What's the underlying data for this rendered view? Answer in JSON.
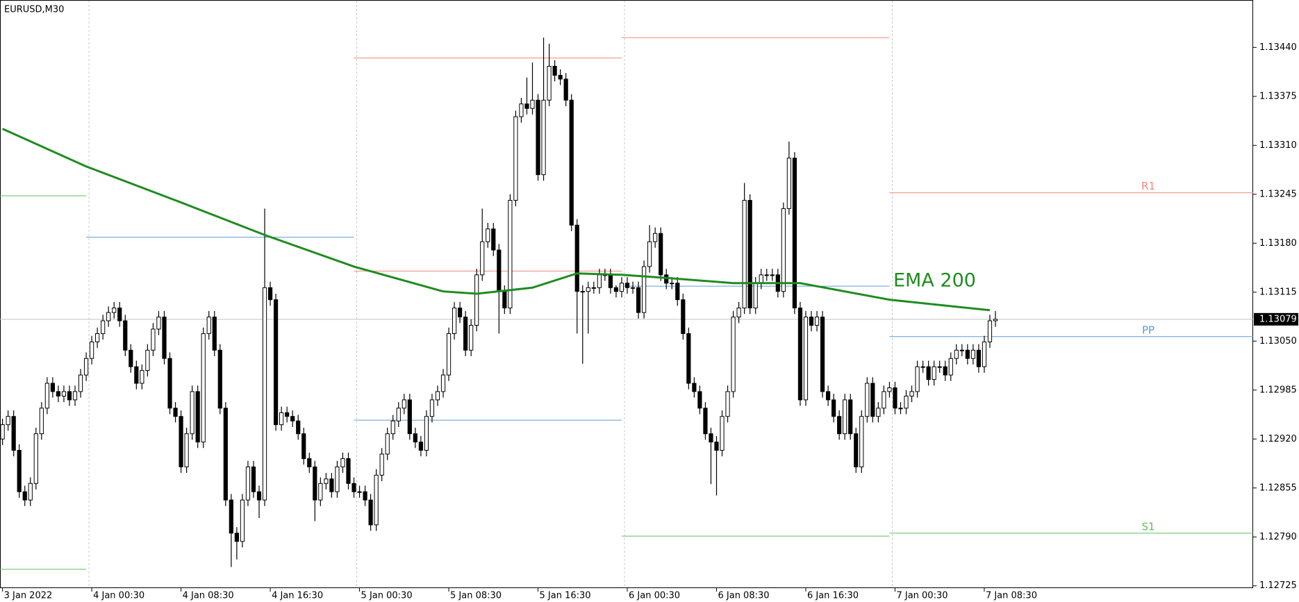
{
  "chart_data": {
    "type": "candlestick",
    "title": "EURUSD,M30",
    "xlim": [
      -0.45,
      224.2
    ],
    "ylim": [
      1.12722,
      1.13503
    ],
    "xticks": [
      {
        "value": 0,
        "label": "3 Jan 2022"
      },
      {
        "value": 16,
        "label": "4 Jan 00:30"
      },
      {
        "value": 32,
        "label": "4 Jan 08:30"
      },
      {
        "value": 48,
        "label": "4 Jan 16:30"
      },
      {
        "value": 64,
        "label": "5 Jan 00:30"
      },
      {
        "value": 80,
        "label": "5 Jan 08:30"
      },
      {
        "value": 96,
        "label": "5 Jan 16:30"
      },
      {
        "value": 112,
        "label": "6 Jan 00:30"
      },
      {
        "value": 128,
        "label": "6 Jan 08:30"
      },
      {
        "value": 144,
        "label": "6 Jan 16:30"
      },
      {
        "value": 160,
        "label": "7 Jan 00:30"
      },
      {
        "value": 176,
        "label": "7 Jan 08:30"
      }
    ],
    "yticks": [
      1.12725,
      {
        "value": 1.1279,
        "label": "1.12790"
      },
      1.12855,
      {
        "value": 1.1292,
        "label": "1.12920"
      },
      1.12985,
      {
        "value": 1.1305,
        "label": "1.13050"
      },
      1.13115,
      {
        "value": 1.1318,
        "label": "1.13180"
      },
      1.13245,
      {
        "value": 1.1331,
        "label": "1.13310"
      },
      1.13375,
      {
        "value": 1.1344,
        "label": "1.13440"
      }
    ],
    "day_separators": [
      15,
      63,
      111,
      159
    ],
    "up_color": "#ffffff",
    "down_color": "#000000",
    "open": [
      1.1292,
      1.12939,
      1.1295,
      1.12905,
      1.1285,
      1.12839,
      1.12861,
      1.12927,
      1.12961,
      1.12994,
      1.12983,
      1.12977,
      1.12983,
      1.12972,
      1.12983,
      1.13005,
      1.13027,
      1.13049,
      1.1306,
      1.13077,
      1.13088,
      1.13094,
      1.13077,
      1.13038,
      1.13016,
      1.12994,
      1.13011,
      1.13038,
      1.13066,
      1.13082,
      1.13027,
      1.12961,
      1.1295,
      1.12883,
      1.12927,
      1.12983,
      1.12916,
      1.1306,
      1.13082,
      1.13038,
      1.12961,
      1.12839,
      1.12795,
      1.12784,
      1.12839,
      1.12883,
      1.1285,
      1.12839,
      1.13121,
      1.13105,
      1.12939,
      1.12955,
      1.1295,
      1.12944,
      1.12927,
      1.12894,
      1.12883,
      1.12839,
      1.12861,
      1.12867,
      1.1285,
      1.12883,
      1.12894,
      1.12861,
      1.1285,
      1.1285,
      1.12839,
      1.12806,
      1.12872,
      1.129,
      1.12927,
      1.12944,
      1.12961,
      1.12972,
      1.12927,
      1.12916,
      1.12905,
      1.1295,
      1.12972,
      1.12983,
      1.13005,
      1.1306,
      1.13094,
      1.13082,
      1.13038,
      1.13071,
      1.13138,
      1.13182,
      1.13199,
      1.13171,
      1.13116,
      1.13094,
      1.13237,
      1.13348,
      1.13365,
      1.13359,
      1.1337,
      1.13271,
      1.1337,
      1.13415,
      1.13403,
      1.13398,
      1.1337,
      1.13204,
      1.13116,
      1.13116,
      1.13121,
      1.13121,
      1.13138,
      1.13138,
      1.13121,
      1.13116,
      1.13127,
      1.13121,
      1.13121,
      1.13088,
      1.13149,
      1.13182,
      1.13193,
      1.13138,
      1.13127,
      1.13127,
      1.13105,
      1.1306,
      1.12994,
      1.12983,
      1.12961,
      1.12927,
      1.12916,
      1.12905,
      1.1295,
      1.12983,
      1.13082,
      1.13094,
      1.13237,
      1.13094,
      1.13127,
      1.13138,
      1.13138,
      1.13138,
      1.13116,
      1.13226,
      1.13293,
      1.13094,
      1.12972,
      1.13082,
      1.13071,
      1.13082,
      1.12983,
      1.12972,
      1.1295,
      1.12927,
      1.12972,
      1.12927,
      1.12883,
      1.1295,
      1.12994,
      1.1295,
      1.12961,
      1.12983,
      1.12988,
      1.12961,
      1.12961,
      1.12977,
      1.12983,
      1.13016,
      1.13016,
      1.12999,
      1.13016,
      1.13016,
      1.13005,
      1.13027,
      1.13038,
      1.13038,
      1.13027,
      1.13038,
      1.13016,
      1.13049,
      1.13077
    ],
    "high": [
      1.12947,
      1.12958,
      1.12958,
      1.12913,
      1.12858,
      1.12869,
      1.12935,
      1.12969,
      1.13002,
      1.13002,
      1.12991,
      1.12991,
      1.12991,
      1.12991,
      1.13013,
      1.13035,
      1.13057,
      1.13068,
      1.13085,
      1.13096,
      1.13102,
      1.13102,
      1.13085,
      1.13046,
      1.13024,
      1.13019,
      1.13046,
      1.13074,
      1.1309,
      1.1309,
      1.13035,
      1.12969,
      1.12958,
      1.12935,
      1.12991,
      1.12991,
      1.13068,
      1.1309,
      1.1309,
      1.13046,
      1.12969,
      1.12847,
      1.12803,
      1.12847,
      1.12891,
      1.12891,
      1.12858,
      1.13226,
      1.13129,
      1.13113,
      1.12963,
      1.12963,
      1.12958,
      1.12952,
      1.12935,
      1.12902,
      1.12891,
      1.12869,
      1.12875,
      1.12875,
      1.12891,
      1.12902,
      1.12902,
      1.12869,
      1.12858,
      1.12858,
      1.12847,
      1.1288,
      1.12908,
      1.12935,
      1.12952,
      1.12969,
      1.1298,
      1.1298,
      1.12935,
      1.12924,
      1.12958,
      1.1298,
      1.12991,
      1.13013,
      1.13068,
      1.13102,
      1.13102,
      1.1309,
      1.13079,
      1.13146,
      1.13226,
      1.13207,
      1.13207,
      1.13179,
      1.13124,
      1.13245,
      1.13356,
      1.13373,
      1.134,
      1.1342,
      1.13378,
      1.13453,
      1.13445,
      1.13423,
      1.13411,
      1.13406,
      1.13378,
      1.13212,
      1.13124,
      1.13129,
      1.13129,
      1.13146,
      1.13146,
      1.13146,
      1.13124,
      1.13135,
      1.13135,
      1.13129,
      1.13129,
      1.13157,
      1.13204,
      1.13201,
      1.13201,
      1.13146,
      1.13135,
      1.13135,
      1.13113,
      1.13068,
      1.13002,
      1.12991,
      1.12969,
      1.12935,
      1.12924,
      1.12958,
      1.12991,
      1.1309,
      1.13102,
      1.1326,
      1.13245,
      1.13135,
      1.13146,
      1.13146,
      1.13146,
      1.13146,
      1.13234,
      1.13315,
      1.13301,
      1.13102,
      1.1309,
      1.1309,
      1.1309,
      1.1309,
      1.12991,
      1.1298,
      1.12958,
      1.1298,
      1.1298,
      1.12935,
      1.12958,
      1.13002,
      1.13002,
      1.12969,
      1.12991,
      1.12996,
      1.12996,
      1.12969,
      1.12985,
      1.12991,
      1.13024,
      1.13024,
      1.13024,
      1.13024,
      1.13024,
      1.13024,
      1.13035,
      1.13046,
      1.13046,
      1.13046,
      1.13046,
      1.13046,
      1.13057,
      1.13085,
      1.1309
    ],
    "low": [
      1.12912,
      1.12931,
      1.12897,
      1.12842,
      1.12831,
      1.12831,
      1.12853,
      1.12919,
      1.12953,
      1.12975,
      1.12969,
      1.12969,
      1.12964,
      1.12964,
      1.12975,
      1.12997,
      1.13019,
      1.13041,
      1.13052,
      1.13069,
      1.1308,
      1.13069,
      1.1303,
      1.13008,
      1.12986,
      1.12986,
      1.13003,
      1.1303,
      1.13058,
      1.13019,
      1.12953,
      1.12942,
      1.12875,
      1.12875,
      1.12919,
      1.12908,
      1.12908,
      1.13052,
      1.1303,
      1.12953,
      1.12831,
      1.1275,
      1.1276,
      1.12776,
      1.12831,
      1.12842,
      1.12815,
      1.12831,
      1.13097,
      1.12931,
      1.12931,
      1.12942,
      1.12936,
      1.12919,
      1.12886,
      1.12875,
      1.12811,
      1.12831,
      1.12853,
      1.12842,
      1.12842,
      1.12875,
      1.12853,
      1.12842,
      1.12842,
      1.12831,
      1.12798,
      1.12798,
      1.12864,
      1.12892,
      1.12919,
      1.12936,
      1.12953,
      1.12919,
      1.12908,
      1.12897,
      1.12897,
      1.12942,
      1.12964,
      1.12975,
      1.12997,
      1.13052,
      1.13074,
      1.1303,
      1.1303,
      1.13063,
      1.1313,
      1.13174,
      1.13163,
      1.1306,
      1.13086,
      1.13086,
      1.13229,
      1.1334,
      1.13351,
      1.13351,
      1.13263,
      1.13263,
      1.13362,
      1.13395,
      1.1339,
      1.13362,
      1.13196,
      1.1306,
      1.1302,
      1.1306,
      1.13113,
      1.13113,
      1.1313,
      1.13113,
      1.13108,
      1.13108,
      1.13113,
      1.13113,
      1.1308,
      1.1308,
      1.13141,
      1.13174,
      1.1313,
      1.13119,
      1.13119,
      1.13097,
      1.13052,
      1.12986,
      1.12975,
      1.12953,
      1.12919,
      1.1286,
      1.12845,
      1.12897,
      1.12942,
      1.12975,
      1.13074,
      1.13086,
      1.13086,
      1.13086,
      1.13119,
      1.1313,
      1.1313,
      1.13108,
      1.13108,
      1.13218,
      1.13086,
      1.12964,
      1.12964,
      1.13063,
      1.13063,
      1.12975,
      1.12964,
      1.12942,
      1.12919,
      1.12919,
      1.12919,
      1.12875,
      1.12875,
      1.12942,
      1.12942,
      1.12942,
      1.12953,
      1.12975,
      1.12953,
      1.12953,
      1.12953,
      1.12969,
      1.12975,
      1.13008,
      1.12991,
      1.12991,
      1.13008,
      1.12997,
      1.12997,
      1.13019,
      1.1303,
      1.13019,
      1.13019,
      1.13008,
      1.13008,
      1.13041,
      1.13069
    ],
    "close": [
      1.12939,
      1.1295,
      1.12905,
      1.1285,
      1.12839,
      1.12861,
      1.12927,
      1.12961,
      1.12994,
      1.12983,
      1.12977,
      1.12983,
      1.12972,
      1.12983,
      1.13005,
      1.13027,
      1.13049,
      1.1306,
      1.13077,
      1.13088,
      1.13094,
      1.13077,
      1.13038,
      1.13016,
      1.12994,
      1.13011,
      1.13038,
      1.13066,
      1.13082,
      1.13027,
      1.12961,
      1.1295,
      1.12883,
      1.12927,
      1.12983,
      1.12916,
      1.1306,
      1.13082,
      1.13038,
      1.12961,
      1.12839,
      1.12795,
      1.12784,
      1.12839,
      1.12883,
      1.1285,
      1.12839,
      1.13121,
      1.13105,
      1.12939,
      1.12955,
      1.1295,
      1.12944,
      1.12927,
      1.12894,
      1.12883,
      1.12839,
      1.12861,
      1.12867,
      1.1285,
      1.12883,
      1.12894,
      1.12861,
      1.1285,
      1.1285,
      1.12839,
      1.12806,
      1.12872,
      1.129,
      1.12927,
      1.12944,
      1.12961,
      1.12972,
      1.12927,
      1.12916,
      1.12905,
      1.1295,
      1.12972,
      1.12983,
      1.13005,
      1.1306,
      1.13094,
      1.13082,
      1.13038,
      1.13071,
      1.13138,
      1.13182,
      1.13199,
      1.13171,
      1.13116,
      1.13094,
      1.13237,
      1.13348,
      1.13365,
      1.13359,
      1.1337,
      1.13271,
      1.1337,
      1.13415,
      1.13403,
      1.13398,
      1.1337,
      1.13204,
      1.13116,
      1.13116,
      1.13121,
      1.13121,
      1.13138,
      1.13138,
      1.13121,
      1.13116,
      1.13127,
      1.13121,
      1.13121,
      1.13088,
      1.13149,
      1.13182,
      1.13193,
      1.13138,
      1.13127,
      1.13127,
      1.13105,
      1.1306,
      1.12994,
      1.12983,
      1.12961,
      1.12927,
      1.12916,
      1.12905,
      1.1295,
      1.12983,
      1.13082,
      1.13094,
      1.13237,
      1.13094,
      1.13127,
      1.13138,
      1.13138,
      1.13138,
      1.13116,
      1.13226,
      1.13293,
      1.13094,
      1.12972,
      1.13082,
      1.13071,
      1.13082,
      1.12983,
      1.12972,
      1.1295,
      1.12927,
      1.12972,
      1.12927,
      1.12883,
      1.1295,
      1.12994,
      1.1295,
      1.12961,
      1.12983,
      1.12988,
      1.12961,
      1.12961,
      1.12977,
      1.12983,
      1.13016,
      1.13016,
      1.12999,
      1.13016,
      1.13016,
      1.13005,
      1.13027,
      1.13038,
      1.13038,
      1.13027,
      1.13038,
      1.13016,
      1.13049,
      1.13077,
      1.13079
    ],
    "ema": {
      "name": "EMA 200",
      "color": "#1e8c1e",
      "x": [
        0,
        15,
        31,
        47,
        63,
        79,
        85,
        95,
        103,
        111,
        119,
        131,
        143,
        159,
        177
      ],
      "values": [
        1.13332,
        1.13282,
        1.13237,
        1.13191,
        1.13149,
        1.13116,
        1.13113,
        1.13121,
        1.1314,
        1.13138,
        1.13134,
        1.13127,
        1.13127,
        1.13105,
        1.13091
      ]
    },
    "pivots": [
      {
        "start": -0.45,
        "end": 15,
        "value": 1.13243,
        "color": "#5cbf5c"
      },
      {
        "start": -0.45,
        "end": 15,
        "value": 1.12747,
        "color": "#5cbf5c"
      },
      {
        "start": 15,
        "end": 63,
        "value": 1.13188,
        "color": "#5b9bd5"
      },
      {
        "start": 63,
        "end": 111,
        "value": 1.13426,
        "color": "#f08878"
      },
      {
        "start": 63,
        "end": 111,
        "value": 1.13143,
        "color": "#f08878"
      },
      {
        "start": 63,
        "end": 111,
        "value": 1.12945,
        "color": "#5b9bd5"
      },
      {
        "start": 111,
        "end": 159,
        "value": 1.13453,
        "color": "#f08878"
      },
      {
        "start": 111,
        "end": 159,
        "value": 1.13123,
        "color": "#5b9bd5"
      },
      {
        "start": 111,
        "end": 159,
        "value": 1.12791,
        "color": "#5cbf5c"
      },
      {
        "start": 159,
        "end": 224.2,
        "value": 1.13247,
        "color": "#f08878",
        "label": "R1"
      },
      {
        "start": 159,
        "end": 224.2,
        "value": 1.13056,
        "color": "#5b9bd5",
        "label": "PP"
      },
      {
        "start": 159,
        "end": 224.2,
        "value": 1.12795,
        "color": "#5cbf5c",
        "label": "S1"
      }
    ]
  }
}
